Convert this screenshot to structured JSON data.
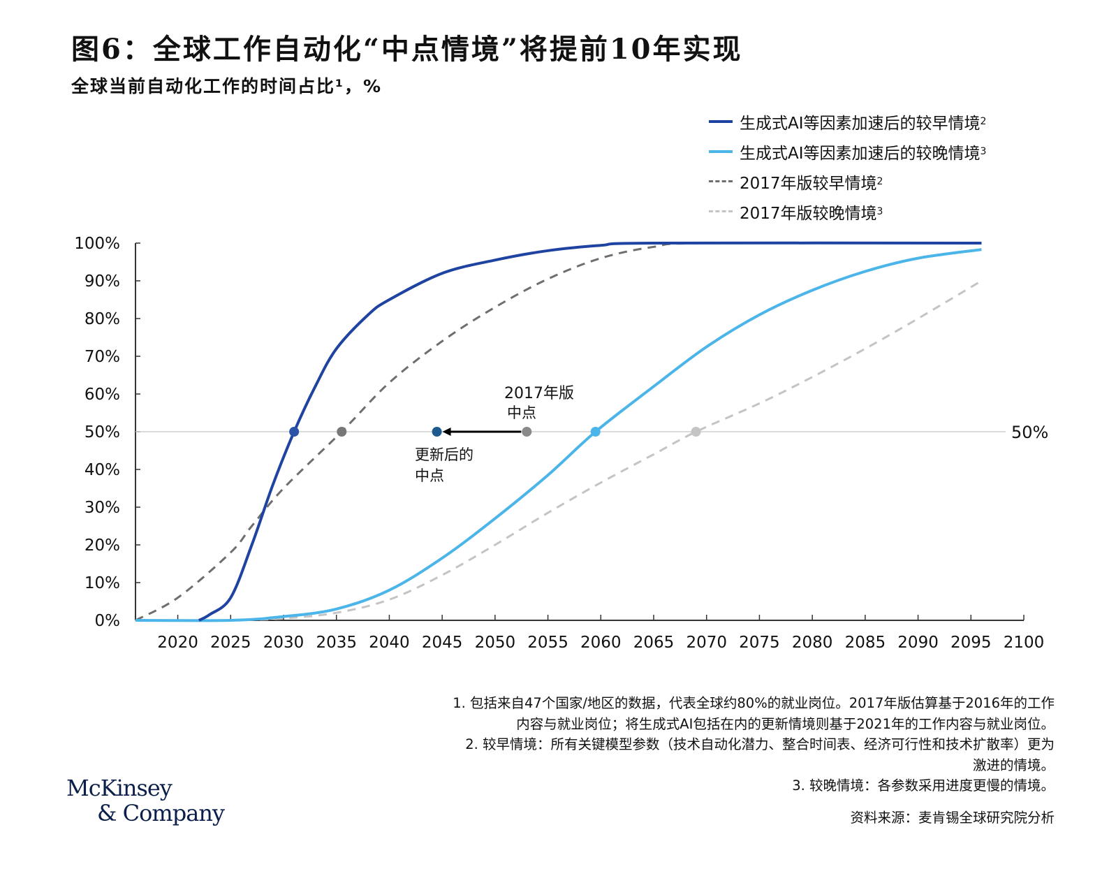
{
  "title": "图6：全球工作自动化“中点情境”将提前10年实现",
  "subtitle": "全球当前自动化工作的时间占比¹，%",
  "chart_data": {
    "type": "line",
    "title": "图6：全球工作自动化“中点情境”将提前10年实现",
    "ylabel": "全球当前自动化工作的时间占比¹，%",
    "xlabel": "",
    "xlim": [
      2016,
      2100
    ],
    "ylim": [
      0,
      100
    ],
    "x_ticks": [
      "2020",
      "2025",
      "2030",
      "2035",
      "2040",
      "2045",
      "2050",
      "2055",
      "2060",
      "2065",
      "2070",
      "2075",
      "2080",
      "2085",
      "2090",
      "2095",
      "2100"
    ],
    "y_ticks": [
      "0%",
      "10%",
      "20%",
      "30%",
      "40%",
      "50%",
      "60%",
      "70%",
      "80%",
      "90%",
      "100%"
    ],
    "legend_position": "top-right",
    "reference_line": {
      "y": 50,
      "label": "50%"
    },
    "series": [
      {
        "name": "生成式AI等因素加速后的较早情境",
        "sup": "2",
        "color": "#1f43a0",
        "dash": false,
        "points": [
          [
            2022,
            0
          ],
          [
            2023,
            1.5
          ],
          [
            2025,
            6
          ],
          [
            2027,
            20
          ],
          [
            2029,
            36
          ],
          [
            2031,
            50
          ],
          [
            2033,
            62
          ],
          [
            2035,
            72
          ],
          [
            2038,
            81
          ],
          [
            2040,
            85
          ],
          [
            2045,
            92
          ],
          [
            2050,
            95.5
          ],
          [
            2055,
            98
          ],
          [
            2060,
            99.4
          ],
          [
            2065,
            100
          ],
          [
            2096,
            100
          ]
        ],
        "midpoint": 2031
      },
      {
        "name": "生成式AI等因素加速后的较晚情境",
        "sup": "3",
        "color": "#4bb5ea",
        "dash": false,
        "points": [
          [
            2016,
            0
          ],
          [
            2025,
            0
          ],
          [
            2030,
            1
          ],
          [
            2035,
            3
          ],
          [
            2040,
            8
          ],
          [
            2045,
            16.5
          ],
          [
            2050,
            27
          ],
          [
            2055,
            38.5
          ],
          [
            2059.5,
            50
          ],
          [
            2065,
            62
          ],
          [
            2070,
            72.5
          ],
          [
            2075,
            81
          ],
          [
            2080,
            87.5
          ],
          [
            2085,
            92.5
          ],
          [
            2090,
            96
          ],
          [
            2096,
            98.3
          ]
        ],
        "midpoint": 2059.5
      },
      {
        "name": "2017年版较早情境",
        "sup": "2",
        "color": "#6e6e6e",
        "dash": true,
        "points": [
          [
            2016,
            0
          ],
          [
            2020,
            6
          ],
          [
            2025,
            18
          ],
          [
            2027,
            25
          ],
          [
            2030,
            35
          ],
          [
            2035.5,
            50
          ],
          [
            2040,
            63
          ],
          [
            2045,
            74
          ],
          [
            2050,
            83
          ],
          [
            2055,
            90.5
          ],
          [
            2060,
            96
          ],
          [
            2065,
            99
          ],
          [
            2070,
            100
          ],
          [
            2096,
            100
          ]
        ],
        "midpoint": 2035.5
      },
      {
        "name": "2017年版较晚情境",
        "sup": "3",
        "color": "#c4c4c4",
        "dash": true,
        "points": [
          [
            2025,
            0
          ],
          [
            2030,
            0.5
          ],
          [
            2035,
            2
          ],
          [
            2040,
            5.5
          ],
          [
            2045,
            12
          ],
          [
            2050,
            20
          ],
          [
            2055,
            28.5
          ],
          [
            2060,
            36.5
          ],
          [
            2065,
            44
          ],
          [
            2069,
            50
          ],
          [
            2075,
            57.5
          ],
          [
            2080,
            64.5
          ],
          [
            2085,
            72
          ],
          [
            2090,
            80
          ],
          [
            2096,
            90
          ]
        ],
        "midpoint": 2069
      }
    ],
    "annotations": {
      "old_midpoint": {
        "x": 2053,
        "y": 50,
        "label_line1": "2017年版",
        "label_line2": "中点",
        "color": "#8a8a8a"
      },
      "new_midpoint": {
        "x": 2044.5,
        "y": 50,
        "label_line1": "更新后的",
        "label_line2": "中点",
        "color": "#1f5a8f"
      }
    }
  },
  "notes": [
    "1.  包括来自47个国家/地区的数据，代表全球约80%的就业岗位。2017年版估算基于2016年的工作",
    "内容与就业岗位；将生成式AI包括在内的更新情境则基于2021年的工作内容与就业岗位。",
    "2.  较早情境：所有关键模型参数（技术自动化潜力、整合时间表、经济可行性和技术扩散率）更为",
    "激进的情境。",
    "3.  较晚情境：各参数采用进度更慢的情境。"
  ],
  "source": "资料来源：麦肯锡全球研究院分析",
  "logo": {
    "line1": "McKinsey",
    "line2": "& Company"
  }
}
